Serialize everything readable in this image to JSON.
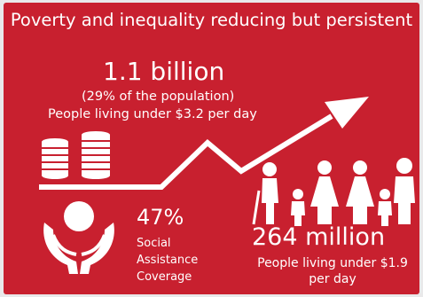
{
  "title": "Poverty and inequality reducing but persistent",
  "stat_main": {
    "value": "1.1 billion",
    "share": "(29% of the population)",
    "label": "People living under $3.2 per day"
  },
  "stat_coverage": {
    "value": "47%",
    "label": "Social\nAssistance\nCoverage"
  },
  "stat_extreme": {
    "value": "264 million",
    "label": "People living under $1.9 per day"
  },
  "icons": {
    "coins": "coins-icon",
    "trend": "trend-arrow-icon",
    "hands": "hands-holding-icon",
    "family": "family-icon"
  },
  "colors": {
    "background": "#c8202f",
    "foreground": "#ffffff"
  }
}
